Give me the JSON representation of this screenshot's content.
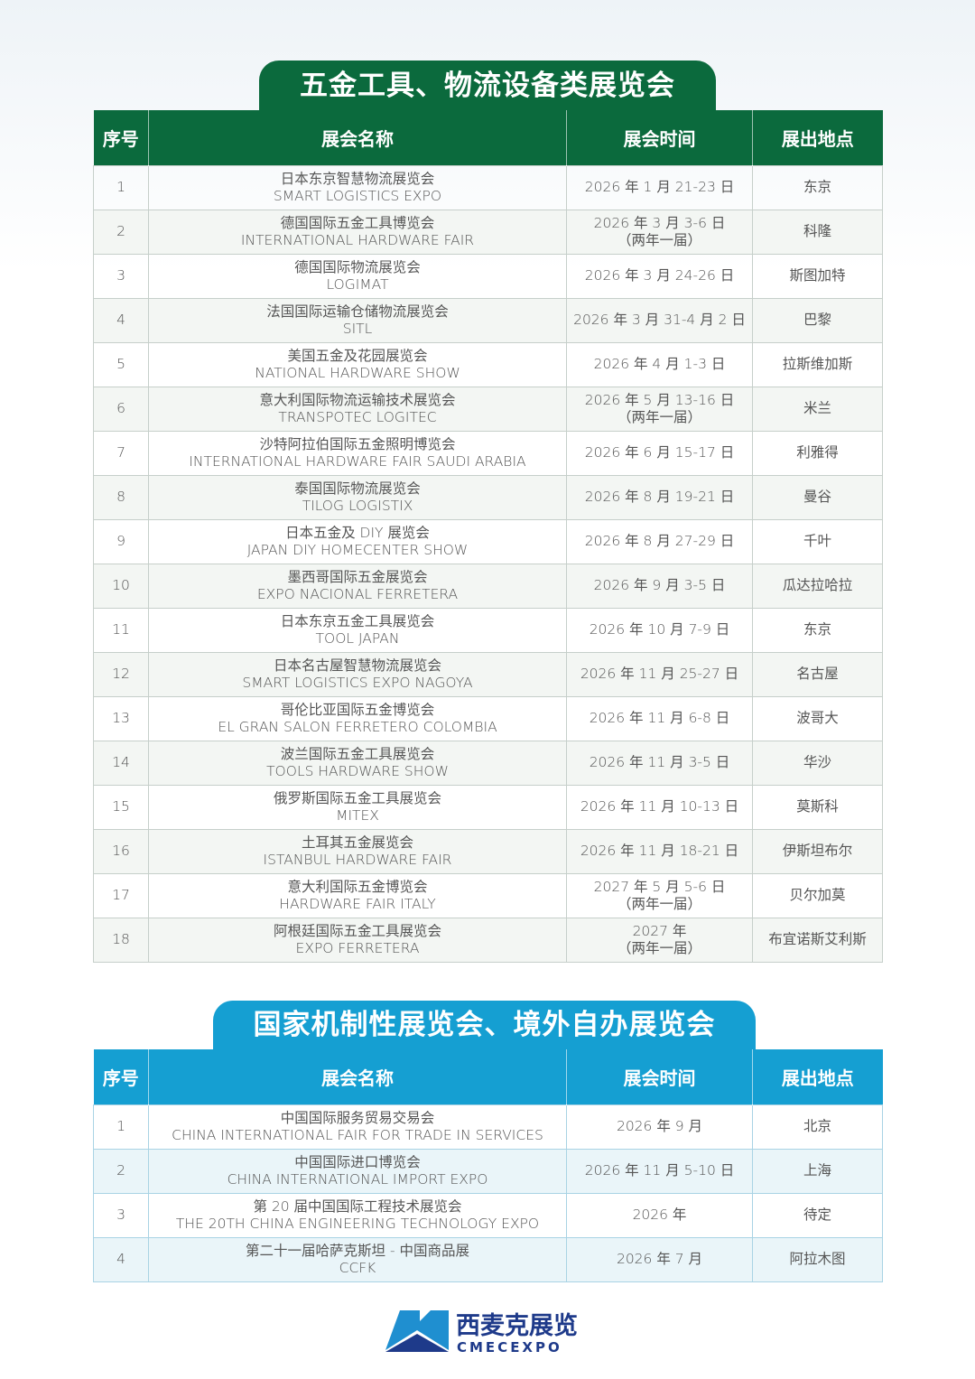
{
  "headers": {
    "no": "序号",
    "name": "展会名称",
    "date": "展会时间",
    "place": "展出地点"
  },
  "colors": {
    "green": "#0b6a3d",
    "blue": "#159fd2",
    "logo": "#1e3a8a"
  },
  "section1": {
    "title": "五金工具、物流设备类展览会",
    "rows": [
      {
        "no": "1",
        "cn": "日本东京智慧物流展览会",
        "en": "SMART LOGISTICS EXPO",
        "date": "2026 年 1 月 21-23 日",
        "note": "",
        "place": "东京"
      },
      {
        "no": "2",
        "cn": "德国国际五金工具博览会",
        "en": "INTERNATIONAL HARDWARE FAIR",
        "date": "2026 年 3 月 3-6 日",
        "note": "（两年一届）",
        "place": "科隆"
      },
      {
        "no": "3",
        "cn": "德国国际物流展览会",
        "en": "LOGIMAT",
        "date": "2026 年 3 月 24-26 日",
        "note": "",
        "place": "斯图加特"
      },
      {
        "no": "4",
        "cn": "法国国际运输仓储物流展览会",
        "en": "SITL",
        "date": "2026 年 3 月 31-4 月 2 日",
        "note": "",
        "place": "巴黎"
      },
      {
        "no": "5",
        "cn": "美国五金及花园展览会",
        "en": "NATIONAL HARDWARE SHOW",
        "date": "2026 年 4 月 1-3 日",
        "note": "",
        "place": "拉斯维加斯"
      },
      {
        "no": "6",
        "cn": "意大利国际物流运输技术展览会",
        "en": "TRANSPOTEC LOGITEC",
        "date": "2026 年 5 月 13-16 日",
        "note": "（两年一届）",
        "place": "米兰"
      },
      {
        "no": "7",
        "cn": "沙特阿拉伯国际五金照明博览会",
        "en": "INTERNATIONAL HARDWARE FAIR SAUDI ARABIA",
        "date": "2026 年 6 月 15-17 日",
        "note": "",
        "place": "利雅得"
      },
      {
        "no": "8",
        "cn": "泰国国际物流展览会",
        "en": "TILOG LOGISTIX",
        "date": "2026 年 8 月 19-21 日",
        "note": "",
        "place": "曼谷"
      },
      {
        "no": "9",
        "cn": "日本五金及 DIY 展览会",
        "en": "JAPAN DIY HOMECENTER SHOW",
        "date": "2026 年 8 月 27-29 日",
        "note": "",
        "place": "千叶"
      },
      {
        "no": "10",
        "cn": "墨西哥国际五金展览会",
        "en": "EXPO NACIONAL FERRETERA",
        "date": "2026 年 9 月 3-5 日",
        "note": "",
        "place": "瓜达拉哈拉"
      },
      {
        "no": "11",
        "cn": "日本东京五金工具展览会",
        "en": "TOOL JAPAN",
        "date": "2026 年 10 月 7-9 日",
        "note": "",
        "place": "东京"
      },
      {
        "no": "12",
        "cn": "日本名古屋智慧物流展览会",
        "en": "SMART LOGISTICS EXPO NAGOYA",
        "date": "2026 年 11 月 25-27 日",
        "note": "",
        "place": "名古屋"
      },
      {
        "no": "13",
        "cn": "哥伦比亚国际五金博览会",
        "en": "EL GRAN SALON FERRETERO COLOMBIA",
        "date": "2026 年 11 月 6-8 日",
        "note": "",
        "place": "波哥大"
      },
      {
        "no": "14",
        "cn": "波兰国际五金工具展览会",
        "en": "TOOLS HARDWARE SHOW",
        "date": "2026 年 11 月 3-5 日",
        "note": "",
        "place": "华沙"
      },
      {
        "no": "15",
        "cn": "俄罗斯国际五金工具展览会",
        "en": "MITEX",
        "date": "2026 年 11 月 10-13 日",
        "note": "",
        "place": "莫斯科"
      },
      {
        "no": "16",
        "cn": "土耳其五金展览会",
        "en": "ISTANBUL HARDWARE FAIR",
        "date": "2026 年 11 月 18-21 日",
        "note": "",
        "place": "伊斯坦布尔"
      },
      {
        "no": "17",
        "cn": "意大利国际五金博览会",
        "en": "HARDWARE FAIR ITALY",
        "date": "2027 年 5 月 5-6 日",
        "note": "（两年一届）",
        "place": "贝尔加莫"
      },
      {
        "no": "18",
        "cn": "阿根廷国际五金工具展览会",
        "en": "EXPO FERRETERA",
        "date": "2027 年",
        "note": "（两年一届）",
        "place": "布宜诺斯艾利斯"
      }
    ]
  },
  "section2": {
    "title": "国家机制性展览会、境外自办展览会",
    "rows": [
      {
        "no": "1",
        "cn": "中国国际服务贸易交易会",
        "en": "CHINA INTERNATIONAL FAIR FOR TRADE IN SERVICES",
        "date": "2026 年 9 月",
        "note": "",
        "place": "北京"
      },
      {
        "no": "2",
        "cn": "中国国际进口博览会",
        "en": "CHINA INTERNATIONAL IMPORT EXPO",
        "date": "2026 年 11 月 5-10 日",
        "note": "",
        "place": "上海"
      },
      {
        "no": "3",
        "cn": "第 20 届中国国际工程技术展览会",
        "en": "THE 20TH CHINA ENGINEERING TECHNOLOGY EXPO",
        "date": "2026 年",
        "note": "",
        "place": "待定"
      },
      {
        "no": "4",
        "cn": "第二十一届哈萨克斯坦 - 中国商品展",
        "en": "CCFK",
        "date": "2026 年 7 月",
        "note": "",
        "place": "阿拉木图"
      }
    ]
  },
  "logo": {
    "cn": "西麦克展览",
    "en": "CMECEXPO"
  }
}
